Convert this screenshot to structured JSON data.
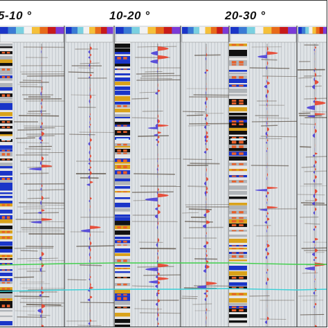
{
  "angle_ranges": [
    {
      "label": "5-10 °",
      "text_x": -3
    },
    {
      "label": "10-20 °",
      "text_x": 158
    },
    {
      "label": "20-30 °",
      "text_x": 325
    }
  ],
  "colors": {
    "frame_border": "#333333",
    "panel_bg": "#dfe3e6",
    "grid_line": "#9aa2a8",
    "positive_wiggle": "#e8402a",
    "negative_wiggle": "#4b3fd8",
    "horizon_green": "#3fcf4a",
    "horizon_cyan": "#3ad0d8",
    "log_blue": "#1a35c8",
    "log_gold": "#d9a21a",
    "seismic_dark": "#3a2a1a"
  },
  "panel_groups": [
    {
      "name": "group-5-10",
      "log_column": true
    },
    {
      "name": "group-10-20",
      "log_column": true
    },
    {
      "name": "group-20-30",
      "log_column": true
    }
  ]
}
